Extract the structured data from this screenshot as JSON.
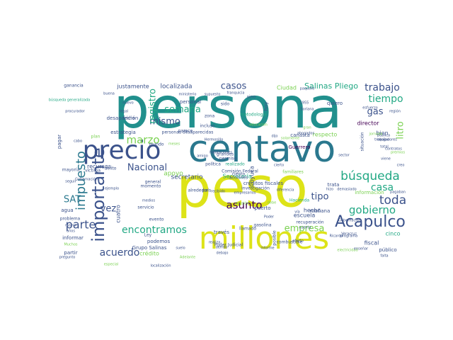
{
  "wordcloud": {
    "background": "#ffffff",
    "words": [
      {
        "text": "persona",
        "color": "#21908d"
      },
      {
        "text": "peso",
        "color": "#dde318"
      },
      {
        "text": "centavo",
        "color": "#2a788e"
      },
      {
        "text": "millones",
        "color": "#dde318"
      },
      {
        "text": "precio",
        "color": "#3b528b"
      },
      {
        "text": "importante",
        "color": "#3b528b"
      },
      {
        "text": "impuesto",
        "color": "#2a788e"
      },
      {
        "text": "Acapulco",
        "color": "#3b528b"
      },
      {
        "text": "búsqueda",
        "color": "#22a884"
      },
      {
        "text": "gobierno",
        "color": "#22a884"
      },
      {
        "text": "toda",
        "color": "#3b528b"
      },
      {
        "text": "encontramos",
        "color": "#22a884"
      },
      {
        "text": "acuerdo",
        "color": "#3b528b"
      },
      {
        "text": "asunto",
        "color": "#440154"
      },
      {
        "text": "parte",
        "color": "#3b528b"
      },
      {
        "text": "marzo",
        "color": "#7ad151"
      },
      {
        "text": "mismo",
        "color": "#3b528b"
      },
      {
        "text": "semana",
        "color": "#22a884"
      },
      {
        "text": "casos",
        "color": "#3b528b"
      },
      {
        "text": "registro",
        "color": "#22a884"
      },
      {
        "text": "trabajo",
        "color": "#3b528b"
      },
      {
        "text": "tiempo",
        "color": "#22a884"
      },
      {
        "text": "casa",
        "color": "#22a884"
      },
      {
        "text": "Nacional",
        "color": "#3b528b"
      },
      {
        "text": "SAT",
        "color": "#2a788e"
      },
      {
        "text": "empresa",
        "color": "#7ad151"
      },
      {
        "text": "vez",
        "color": "#3b528b"
      },
      {
        "text": "gas",
        "color": "#3b528b"
      },
      {
        "text": "litro",
        "color": "#7ad151"
      },
      {
        "text": "tipo",
        "color": "#3b528b"
      },
      {
        "text": "Salinas Pliego",
        "color": "#22a884"
      },
      {
        "text": "localizada",
        "color": "#3b528b"
      },
      {
        "text": "justamente",
        "color": "#3b528b"
      },
      {
        "text": "recursos",
        "color": "#3b528b"
      },
      {
        "text": "Coyuca",
        "color": "#3b528b"
      },
      {
        "text": "secretario",
        "color": "#3b528b"
      },
      {
        "text": "Secretaría",
        "color": "#22a884"
      },
      {
        "text": "fiscal",
        "color": "#3b528b"
      },
      {
        "text": "director",
        "color": "#440154"
      },
      {
        "text": "bien",
        "color": "#3b528b"
      },
      {
        "text": "apoyo",
        "color": "#7ad151"
      },
      {
        "text": "Guerrero",
        "color": "#440154"
      },
      {
        "text": "permiso",
        "color": "#3b528b"
      },
      {
        "text": "escuela",
        "color": "#3b528b"
      },
      {
        "text": "hecho",
        "color": "#3b528b"
      },
      {
        "text": "mañana",
        "color": "#3b528b"
      },
      {
        "text": "puerto",
        "color": "#3b528b"
      },
      {
        "text": "informar",
        "color": "#3b528b"
      },
      {
        "text": "partir",
        "color": "#3b528b"
      },
      {
        "text": "podemos",
        "color": "#3b528b"
      },
      {
        "text": "crédito",
        "color": "#7ad151"
      },
      {
        "text": "agua",
        "color": "#3b528b"
      },
      {
        "text": "cinco",
        "color": "#22a884"
      },
      {
        "text": "público",
        "color": "#3b528b"
      },
      {
        "text": "trata",
        "color": "#3b528b"
      },
      {
        "text": "Ciudad",
        "color": "#7ad151"
      },
      {
        "text": "personal",
        "color": "#3b528b"
      },
      {
        "text": "Ley",
        "color": "#3b528b"
      },
      {
        "text": "canasta",
        "color": "#3b528b"
      },
      {
        "text": "respecto",
        "color": "#7ad151"
      },
      {
        "text": "estrategia",
        "color": "#3b528b"
      },
      {
        "text": "gasolina",
        "color": "#3b528b"
      },
      {
        "text": "través",
        "color": "#3b528b"
      },
      {
        "text": "información",
        "color": "#7ad151"
      },
      {
        "text": "créditos fiscales",
        "color": "#3b528b"
      },
      {
        "text": "familiares",
        "color": "#7ad151"
      },
      {
        "text": "Hacienda",
        "color": "#22a884"
      },
      {
        "text": "grandes",
        "color": "#3b528b"
      },
      {
        "text": "hoy",
        "color": "#3b528b"
      },
      {
        "text": "cuatro",
        "color": "#3b528b"
      },
      {
        "text": "personas desaparecidas",
        "color": "#3b528b"
      },
      {
        "text": "zona",
        "color": "#3b528b"
      },
      {
        "text": "incluso",
        "color": "#3b528b"
      },
      {
        "text": "parece",
        "color": "#3b528b"
      },
      {
        "text": "desaparición",
        "color": "#3b528b"
      },
      {
        "text": "plan",
        "color": "#7ad151"
      },
      {
        "text": "delito",
        "color": "#3b528b"
      },
      {
        "text": "víctima",
        "color": "#3b528b"
      },
      {
        "text": "mayoría",
        "color": "#3b528b"
      },
      {
        "text": "Grupo Salinas",
        "color": "#3b528b"
      },
      {
        "text": "sino",
        "color": "#3b528b"
      },
      {
        "text": "metodología",
        "color": "#22a884"
      },
      {
        "text": "recuperación",
        "color": "#3b528b"
      },
      {
        "text": "investigación",
        "color": "#3b528b"
      },
      {
        "text": "general",
        "color": "#3b528b"
      },
      {
        "text": "esfuerzo",
        "color": "#3b528b"
      },
      {
        "text": "alrededor",
        "color": "#3b528b"
      },
      {
        "text": "Poder Judicial",
        "color": "#3b528b"
      },
      {
        "text": "Comisión Federal",
        "color": "#3b528b"
      },
      {
        "text": "ciento",
        "color": "#3b528b"
      },
      {
        "text": "acciones",
        "color": "#3b528b"
      },
      {
        "text": "evento",
        "color": "#3b528b"
      },
      {
        "text": "servicio",
        "color": "#3b528b"
      },
      {
        "text": "país",
        "color": "#3b528b"
      },
      {
        "text": "política",
        "color": "#3b528b"
      },
      {
        "text": "realizado",
        "color": "#22a884"
      },
      {
        "text": "problema",
        "color": "#3b528b"
      },
      {
        "text": "pagar",
        "color": "#3b528b"
      },
      {
        "text": "ganancia",
        "color": "#3b528b"
      },
      {
        "text": "búsqueda generalizada",
        "color": "#22a884"
      },
      {
        "text": "procurador",
        "color": "#3b528b"
      },
      {
        "text": "seguir",
        "color": "#3b528b"
      },
      {
        "text": "mayor",
        "color": "#3b528b"
      },
      {
        "text": "años",
        "color": "#3b528b"
      },
      {
        "text": "Muchos",
        "color": "#7ad151"
      },
      {
        "text": "especial",
        "color": "#7ad151"
      },
      {
        "text": "quiero",
        "color": "#3b528b"
      },
      {
        "text": "región",
        "color": "#3b528b"
      },
      {
        "text": "gran",
        "color": "#7ad151"
      },
      {
        "text": "abogados",
        "color": "#3b528b"
      },
      {
        "text": "pública",
        "color": "#3b528b"
      },
      {
        "text": "situación",
        "color": "#3b528b"
      },
      {
        "text": "sector",
        "color": "#3b528b"
      },
      {
        "text": "creo",
        "color": "#3b528b"
      },
      {
        "text": "trabajadores",
        "color": "#3b528b"
      },
      {
        "text": "localización",
        "color": "#3b528b"
      },
      {
        "text": "falta",
        "color": "#3b528b"
      },
      {
        "text": "Veracruz",
        "color": "#3b528b"
      },
      {
        "text": "electricidad",
        "color": "#7ad151"
      },
      {
        "text": "combustible",
        "color": "#3b528b"
      },
      {
        "text": "informe",
        "color": "#3b528b"
      },
      {
        "text": "posible",
        "color": "#3b528b"
      },
      {
        "text": "supuesto",
        "color": "#3b528b"
      },
      {
        "text": "ministerio",
        "color": "#3b528b"
      },
      {
        "text": "nuevo",
        "color": "#3b528b"
      },
      {
        "text": "buena",
        "color": "#3b528b"
      },
      {
        "text": "legal",
        "color": "#3b528b"
      },
      {
        "text": "sido",
        "color": "#3b528b"
      },
      {
        "text": "amigo",
        "color": "#3b528b"
      },
      {
        "text": "debe",
        "color": "#7ad151"
      },
      {
        "text": "cuenta",
        "color": "#3b528b"
      },
      {
        "text": "Gobernación",
        "color": "#3b528b"
      },
      {
        "text": "jornada",
        "color": "#7ad151"
      },
      {
        "text": "contratos",
        "color": "#3b528b"
      },
      {
        "text": "premios",
        "color": "#7ad151"
      },
      {
        "text": "viene",
        "color": "#3b528b"
      },
      {
        "text": "total",
        "color": "#3b528b"
      },
      {
        "text": "pagaban",
        "color": "#3b528b"
      },
      {
        "text": "equipo",
        "color": "#3b528b"
      },
      {
        "text": "realiza",
        "color": "#3b528b"
      },
      {
        "text": "demás",
        "color": "#3b528b"
      },
      {
        "text": "debajo",
        "color": "#3b528b"
      },
      {
        "text": "llamado",
        "color": "#3b528b"
      },
      {
        "text": "cierto",
        "color": "#3b528b"
      },
      {
        "text": "Adelante",
        "color": "#7ad151"
      },
      {
        "text": "mundo",
        "color": "#3b528b"
      },
      {
        "text": "fecha",
        "color": "#3b528b"
      },
      {
        "text": "cabo",
        "color": "#3b528b"
      },
      {
        "text": "meses",
        "color": "#7ad151"
      },
      {
        "text": "habitaciones",
        "color": "#3b528b"
      },
      {
        "text": "Hermosillo",
        "color": "#3b528b"
      },
      {
        "text": "educación",
        "color": "#7ad151"
      },
      {
        "text": "franquicia",
        "color": "#3b528b"
      },
      {
        "text": "Soriana",
        "color": "#3b528b"
      },
      {
        "text": "paquete",
        "color": "#3b528b"
      },
      {
        "text": "medios",
        "color": "#3b528b"
      },
      {
        "text": "ocasión",
        "color": "#7ad151"
      },
      {
        "text": "empresarios",
        "color": "#3b528b"
      },
      {
        "text": "diferencia",
        "color": "#3b528b"
      },
      {
        "text": "recibido",
        "color": "#3b528b"
      },
      {
        "text": "efecto",
        "color": "#3b528b"
      },
      {
        "text": "vía",
        "color": "#3b528b"
      },
      {
        "text": "hizo",
        "color": "#3b528b"
      },
      {
        "text": "dijo",
        "color": "#3b528b"
      },
      {
        "text": "suelo",
        "color": "#3b528b"
      },
      {
        "text": "pregunto",
        "color": "#3b528b"
      },
      {
        "text": "programa",
        "color": "#3b528b"
      },
      {
        "text": "Ricardo",
        "color": "#3b528b"
      },
      {
        "text": "demasiado",
        "color": "#3b528b"
      },
      {
        "text": "enseñar",
        "color": "#3b528b"
      },
      {
        "text": "momento",
        "color": "#3b528b"
      },
      {
        "text": "Poder",
        "color": "#3b528b"
      },
      {
        "text": "solamente",
        "color": "#7ad151"
      },
      {
        "text": "Gobernación",
        "color": "#3b528b"
      },
      {
        "text": "ejemplo",
        "color": "#3b528b"
      },
      {
        "text": "1955",
        "color": "#3b528b"
      },
      {
        "text": "mes",
        "color": "#3b528b"
      },
      {
        "text": "Bender",
        "color": "#3b528b"
      }
    ]
  }
}
